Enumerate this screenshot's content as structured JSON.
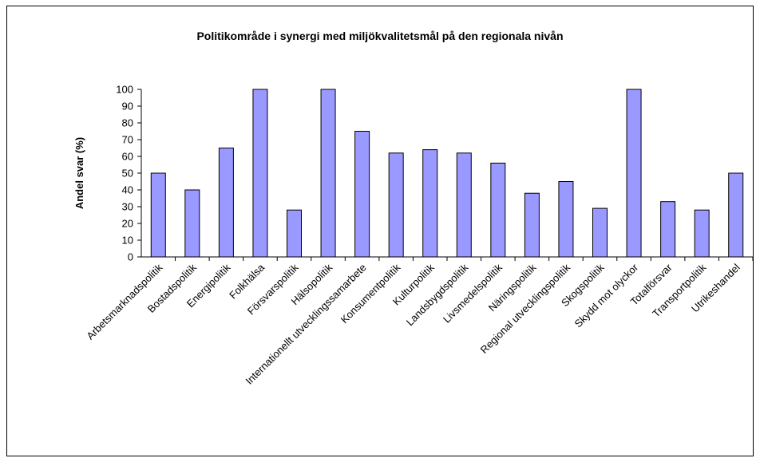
{
  "chart_data": {
    "type": "bar",
    "title": "Politikområde i synergi med miljökvalitetsmål på den regionala nivån",
    "y_label": "Andel svar (%)",
    "categories": [
      "Arbetsmarknadspolitik",
      "Bostadspolitik",
      "Energipolitik",
      "Folkhälsa",
      "Försvarspolitik",
      "Hälsopolitik",
      "Internationellt utvecklingssamarbete",
      "Konsumentpolitik",
      "Kulturpolitik",
      "Landsbygdspolitik",
      "Livsmedelspolitik",
      "Näringspolitik",
      "Regional utvecklingspolitik",
      "Skogspolitik",
      "Skydd mot olyckor",
      "Totalförsvar",
      "Transportpolitik",
      "Utrikeshandel"
    ],
    "values": [
      50,
      40,
      65,
      100,
      28,
      100,
      75,
      62,
      64,
      62,
      56,
      38,
      45,
      29,
      100,
      33,
      28,
      50
    ],
    "color": "#9999ff",
    "ylim": [
      0,
      100
    ],
    "yticks": [
      0,
      10,
      20,
      30,
      40,
      50,
      60,
      70,
      80,
      90,
      100
    ],
    "grid": false
  }
}
